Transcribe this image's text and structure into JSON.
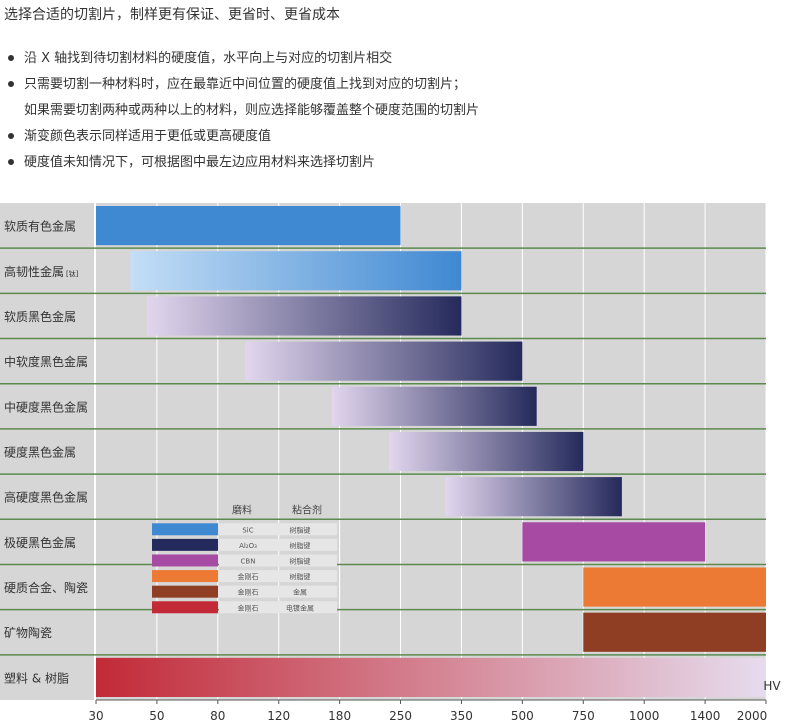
{
  "header": {
    "title": "选择合适的切割片，制样更有保证、更省时、更省成本",
    "bullets": [
      {
        "text": "沿 X 轴找到待切割材料的硬度值，水平向上与对应的切割片相交",
        "marker": true
      },
      {
        "text": "只需要切割一种材料时，应在最靠近中间位置的硬度值上找到对应的切割片；",
        "marker": true
      },
      {
        "text": "如果需要切割两种或两种以上的材料，则应选择能够覆盖整个硬度范围的切割片",
        "marker": false
      },
      {
        "text": "渐变颜色表示同样适用于更低或更高硬度值",
        "marker": true
      },
      {
        "text": "硬度值未知情况下，可根据图中最左边应用材料来选择切割片",
        "marker": true
      }
    ]
  },
  "colors": {
    "background": "#d6d6d6",
    "row_divider": "#5c8a4e",
    "gridline": "#ffffff",
    "sic": "#3f88d2",
    "al2o3": "#252a5c",
    "cbn": "#a74aa4",
    "diamond_resin": "#ec7a34",
    "diamond_metal": "#8f3e24",
    "plated_metal": "#c22a37"
  },
  "chart_data": {
    "type": "bar",
    "orientation": "horizontal-range",
    "x_unit": "HV",
    "x_ticks": [
      "30",
      "50",
      "80",
      "120",
      "180",
      "250",
      "350",
      "500",
      "750",
      "1000",
      "1400",
      "2000"
    ],
    "grid": true,
    "categories": [
      "软质有色金属",
      "高韧性金属",
      "软质黑色金属",
      "中软度黑色金属",
      "中硬度黑色金属",
      "硬度黑色金属",
      "高硬度黑色金属",
      "极硬黑色金属",
      "硬质合金、陶瓷",
      "矿物陶瓷",
      "塑料 & 树脂"
    ],
    "category_suffix": {
      "1": "[钛]"
    },
    "bars": [
      {
        "row": 0,
        "start": 30,
        "end": 250,
        "style": "solid",
        "color": "#3f88d2"
      },
      {
        "row": 1,
        "start": 40,
        "end": 350,
        "style": "gradient",
        "color_start": "#c4def6",
        "color_end": "#3f88d2"
      },
      {
        "row": 2,
        "start": 46,
        "end": 350,
        "style": "gradient",
        "color_start": "#e2d6ee",
        "color_end": "#252a5c"
      },
      {
        "row": 3,
        "start": 96,
        "end": 500,
        "style": "gradient",
        "color_start": "#e2d6ee",
        "color_end": "#252a5c"
      },
      {
        "row": 4,
        "start": 171,
        "end": 550,
        "style": "gradient",
        "color_start": "#e2d6ee",
        "color_end": "#252a5c"
      },
      {
        "row": 5,
        "start": 235,
        "end": 750,
        "style": "gradient",
        "color_start": "#e2d6ee",
        "color_end": "#252a5c"
      },
      {
        "row": 6,
        "start": 320,
        "end": 900,
        "style": "gradient",
        "color_start": "#e2d6ee",
        "color_end": "#252a5c"
      },
      {
        "row": 7,
        "start": 500,
        "end": 1400,
        "style": "solid",
        "color": "#a74aa4"
      },
      {
        "row": 8,
        "start": 750,
        "end": 2000,
        "style": "solid",
        "color": "#ec7a34"
      },
      {
        "row": 9,
        "start": 750,
        "end": 2000,
        "style": "solid",
        "color": "#8f3e24"
      },
      {
        "row": 10,
        "start": 30,
        "end": 2000,
        "style": "gradient",
        "color_start": "#c22a37",
        "color_end": "#e6dcee"
      }
    ],
    "legend": {
      "header_abrasive": "磨料",
      "header_bond": "粘合剂",
      "entries": [
        {
          "color": "#3f88d2",
          "abrasive": "SiC",
          "bond": "树脂键"
        },
        {
          "color": "#252a5c",
          "abrasive": "Al₂O₃",
          "bond": "树脂键"
        },
        {
          "color": "#a74aa4",
          "abrasive": "CBN",
          "bond": "树脂键"
        },
        {
          "color": "#ec7a34",
          "abrasive": "金刚石",
          "bond": "树脂键"
        },
        {
          "color": "#8f3e24",
          "abrasive": "金刚石",
          "bond": "金属"
        },
        {
          "color": "#c22a37",
          "abrasive": "金刚石",
          "bond": "电镀金属"
        }
      ]
    }
  }
}
